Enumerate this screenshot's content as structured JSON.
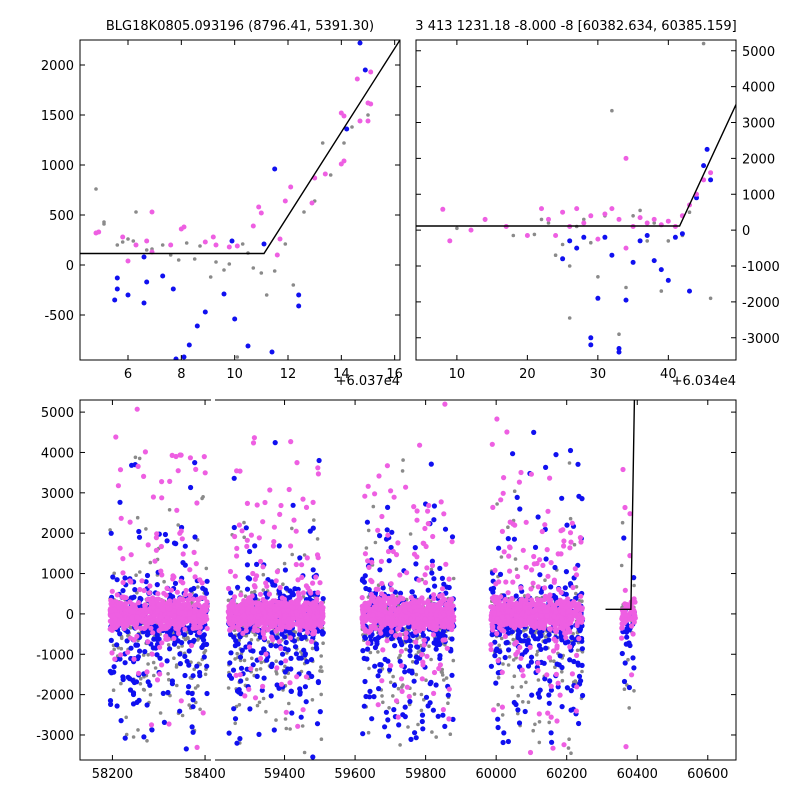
{
  "colors": {
    "blue": "#1010f0",
    "magenta": "#ee5fe2",
    "gray": "#8a8a8a",
    "line": "#000000"
  },
  "chart_data": [
    {
      "id": "top-left",
      "type": "scatter",
      "title": "BLG18K0805.093196 (8796.41, 5391.30)",
      "offset_label": "+6.037e4",
      "xlim": [
        4.2,
        16.2
      ],
      "ylim": [
        -950,
        2250
      ],
      "x_ticks": [
        6,
        8,
        10,
        12,
        14,
        16
      ],
      "y_ticks": [
        -500,
        0,
        500,
        1000,
        1500,
        2000
      ],
      "y_axis_side": "left",
      "series": [
        {
          "color": "gray",
          "points": [
            [
              4.8,
              760
            ],
            [
              5.1,
              410
            ],
            [
              5.1,
              430
            ],
            [
              5.6,
              200
            ],
            [
              5.8,
              230
            ],
            [
              6.0,
              260
            ],
            [
              6.2,
              240
            ],
            [
              6.3,
              530
            ],
            [
              6.7,
              150
            ],
            [
              6.9,
              160
            ],
            [
              7.3,
              200
            ],
            [
              7.6,
              100
            ],
            [
              7.9,
              50
            ],
            [
              8.2,
              220
            ],
            [
              8.5,
              60
            ],
            [
              8.7,
              190
            ],
            [
              9.1,
              -120
            ],
            [
              9.3,
              30
            ],
            [
              9.6,
              -50
            ],
            [
              9.8,
              10
            ],
            [
              10.1,
              -920
            ],
            [
              10.3,
              210
            ],
            [
              10.5,
              120
            ],
            [
              10.7,
              -30
            ],
            [
              11.0,
              -80
            ],
            [
              11.2,
              -300
            ],
            [
              11.5,
              -60
            ],
            [
              11.9,
              210
            ],
            [
              12.2,
              -200
            ],
            [
              12.6,
              530
            ],
            [
              13.0,
              640
            ],
            [
              13.3,
              1220
            ],
            [
              13.6,
              900
            ],
            [
              14.1,
              1220
            ],
            [
              14.4,
              1380
            ],
            [
              15.0,
              1500
            ]
          ]
        },
        {
          "color": "blue",
          "points": [
            [
              5.5,
              -350
            ],
            [
              5.6,
              -130
            ],
            [
              5.6,
              -240
            ],
            [
              6.0,
              -300
            ],
            [
              6.6,
              80
            ],
            [
              6.6,
              -380
            ],
            [
              6.7,
              -170
            ],
            [
              7.3,
              -110
            ],
            [
              7.7,
              -240
            ],
            [
              7.8,
              -940
            ],
            [
              8.1,
              -920
            ],
            [
              8.3,
              -800
            ],
            [
              8.6,
              -610
            ],
            [
              8.9,
              -470
            ],
            [
              9.6,
              -290
            ],
            [
              9.9,
              240
            ],
            [
              10.0,
              -540
            ],
            [
              10.5,
              -810
            ],
            [
              11.1,
              210
            ],
            [
              11.4,
              -870
            ],
            [
              11.5,
              960
            ],
            [
              12.4,
              -300
            ],
            [
              12.4,
              -410
            ],
            [
              14.2,
              1360
            ],
            [
              14.7,
              2220
            ],
            [
              14.9,
              1950
            ]
          ]
        },
        {
          "color": "magenta",
          "points": [
            [
              4.8,
              320
            ],
            [
              4.9,
              330
            ],
            [
              5.8,
              280
            ],
            [
              6.0,
              40
            ],
            [
              6.3,
              200
            ],
            [
              6.7,
              240
            ],
            [
              6.9,
              130
            ],
            [
              6.9,
              530
            ],
            [
              7.6,
              200
            ],
            [
              8.0,
              360
            ],
            [
              8.1,
              380
            ],
            [
              8.9,
              230
            ],
            [
              9.2,
              280
            ],
            [
              9.3,
              200
            ],
            [
              9.8,
              180
            ],
            [
              10.1,
              190
            ],
            [
              10.7,
              390
            ],
            [
              10.9,
              580
            ],
            [
              11.0,
              520
            ],
            [
              11.6,
              100
            ],
            [
              11.7,
              260
            ],
            [
              11.9,
              640
            ],
            [
              12.1,
              780
            ],
            [
              12.9,
              620
            ],
            [
              13.0,
              870
            ],
            [
              13.4,
              910
            ],
            [
              14.0,
              1010
            ],
            [
              14.1,
              1040
            ],
            [
              14.0,
              1520
            ],
            [
              14.1,
              1490
            ],
            [
              14.7,
              1440
            ],
            [
              15.0,
              1440
            ],
            [
              15.0,
              1620
            ],
            [
              15.1,
              1610
            ],
            [
              14.6,
              1860
            ],
            [
              15.1,
              1930
            ]
          ]
        }
      ],
      "model_line": [
        [
          4.2,
          115
        ],
        [
          11.1,
          115
        ],
        [
          16.2,
          2250
        ]
      ]
    },
    {
      "id": "top-right",
      "type": "scatter",
      "title": "3 413 1231.18 -8.000 -8 [60382.634, 60385.159]",
      "offset_label": "+6.034e4",
      "xlim": [
        4.2,
        49.6
      ],
      "ylim": [
        -3620,
        5300
      ],
      "x_ticks": [
        10,
        20,
        30,
        40
      ],
      "y_ticks": [
        -3000,
        -2000,
        -1000,
        0,
        1000,
        2000,
        3000,
        4000,
        5000
      ],
      "y_axis_side": "right",
      "series": [
        {
          "color": "gray",
          "points": [
            [
              10,
              50
            ],
            [
              14,
              280
            ],
            [
              18,
              -150
            ],
            [
              21,
              -120
            ],
            [
              22,
              300
            ],
            [
              23,
              200
            ],
            [
              24,
              -700
            ],
            [
              25,
              -400
            ],
            [
              26,
              -1000
            ],
            [
              26,
              -2450
            ],
            [
              27,
              100
            ],
            [
              28,
              300
            ],
            [
              29,
              -350
            ],
            [
              30,
              -1300
            ],
            [
              31,
              400
            ],
            [
              32,
              3330
            ],
            [
              33,
              -2900
            ],
            [
              34,
              -1600
            ],
            [
              35,
              400
            ],
            [
              36,
              550
            ],
            [
              37,
              -300
            ],
            [
              38,
              200
            ],
            [
              39,
              -1700
            ],
            [
              40,
              -300
            ],
            [
              41,
              100
            ],
            [
              42,
              -150
            ],
            [
              43,
              500
            ],
            [
              44,
              900
            ],
            [
              45,
              5200
            ],
            [
              46,
              -1900
            ]
          ]
        },
        {
          "color": "blue",
          "points": [
            [
              25,
              -800
            ],
            [
              26,
              -300
            ],
            [
              27,
              -500
            ],
            [
              28,
              -200
            ],
            [
              29,
              -3000
            ],
            [
              29,
              -3200
            ],
            [
              30,
              -1900
            ],
            [
              31,
              -200
            ],
            [
              32,
              -700
            ],
            [
              33,
              -3300
            ],
            [
              33,
              -3400
            ],
            [
              34,
              -1950
            ],
            [
              35,
              -900
            ],
            [
              36,
              -300
            ],
            [
              37,
              -150
            ],
            [
              38,
              -850
            ],
            [
              39,
              -1100
            ],
            [
              40,
              -1400
            ],
            [
              41,
              -200
            ],
            [
              42,
              -100
            ],
            [
              43,
              -1700
            ],
            [
              44,
              900
            ],
            [
              45,
              1800
            ],
            [
              45.5,
              2250
            ],
            [
              46,
              1400
            ]
          ]
        },
        {
          "color": "magenta",
          "points": [
            [
              8,
              580
            ],
            [
              9,
              -300
            ],
            [
              12,
              0
            ],
            [
              14,
              300
            ],
            [
              17,
              100
            ],
            [
              20,
              -150
            ],
            [
              22,
              600
            ],
            [
              23,
              300
            ],
            [
              24,
              -150
            ],
            [
              25,
              500
            ],
            [
              26,
              100
            ],
            [
              27,
              600
            ],
            [
              28,
              200
            ],
            [
              29,
              400
            ],
            [
              30,
              -250
            ],
            [
              31,
              450
            ],
            [
              32,
              600
            ],
            [
              33,
              300
            ],
            [
              34,
              2000
            ],
            [
              34,
              -500
            ],
            [
              35,
              100
            ],
            [
              36,
              350
            ],
            [
              37,
              200
            ],
            [
              38,
              300
            ],
            [
              39,
              150
            ],
            [
              40,
              250
            ],
            [
              41,
              100
            ],
            [
              42,
              400
            ],
            [
              43,
              700
            ],
            [
              44,
              1000
            ],
            [
              45,
              1400
            ],
            [
              46,
              1600
            ]
          ]
        }
      ],
      "model_line": [
        [
          4.2,
          115
        ],
        [
          41.6,
          115
        ],
        [
          49.6,
          3500
        ]
      ]
    },
    {
      "id": "bottom",
      "type": "scatter",
      "title": "",
      "offset_label": "",
      "xlim": [
        58130,
        60680
      ],
      "ylim": [
        -3620,
        5300
      ],
      "x_ticks": [
        58200,
        58400,
        59400,
        59600,
        59800,
        60000,
        60200,
        60400,
        60600
      ],
      "y_ticks": [
        -3000,
        -2000,
        -1000,
        0,
        1000,
        2000,
        3000,
        4000,
        5000
      ],
      "y_axis_side": "left",
      "axis_break": {
        "between": [
          58400,
          59400
        ],
        "note": "compressed season gap"
      },
      "seasons": [
        {
          "x_range": [
            58195,
            58405
          ]
        },
        {
          "x_range": [
            59240,
            59510
          ]
        },
        {
          "x_range": [
            59620,
            59880
          ]
        },
        {
          "x_range": [
            59985,
            60245
          ]
        },
        {
          "x_range": [
            60355,
            60395
          ]
        }
      ],
      "model_line": [
        [
          60310,
          115
        ],
        [
          60382,
          115
        ],
        [
          60392,
          5300
        ]
      ]
    }
  ]
}
